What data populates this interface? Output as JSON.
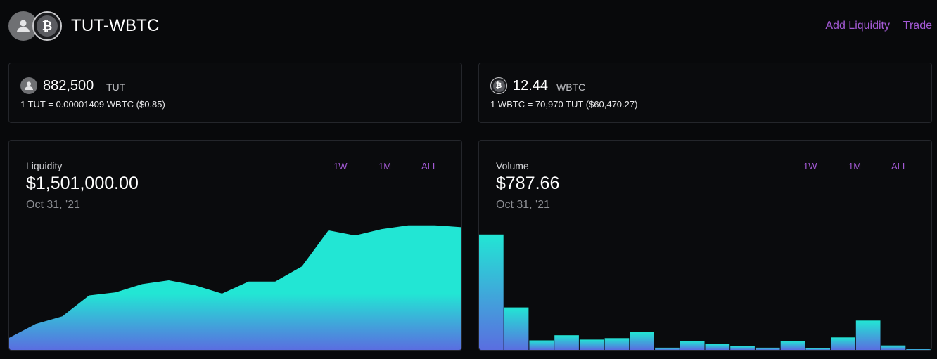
{
  "header": {
    "pair": "TUT-WBTC",
    "add_liquidity": "Add Liquidity",
    "trade": "Trade",
    "token0_icon": "user-icon",
    "token1_icon": "bitcoin-icon",
    "token1_glyph": "₿"
  },
  "balances": [
    {
      "amount": "882,500",
      "symbol": "TUT",
      "rate": "1 TUT = 0.00001409 WBTC ($0.85)",
      "icon": "user-icon"
    },
    {
      "amount": "12.44",
      "symbol": "WBTC",
      "rate": "1 WBTC = 70,970 TUT ($60,470.27)",
      "icon": "bitcoin-icon"
    }
  ],
  "liquidity": {
    "label": "Liquidity",
    "value": "$1,501,000.00",
    "date": "Oct 31, '21",
    "ranges": [
      "1W",
      "1M",
      "ALL"
    ]
  },
  "volume": {
    "label": "Volume",
    "value": "$787.66",
    "date": "Oct 31, '21",
    "ranges": [
      "1W",
      "1M",
      "ALL"
    ]
  },
  "colors": {
    "accent": "#a45ad6",
    "gradient_top": "#22e6d4",
    "gradient_bottom": "#5a6ee0"
  },
  "chart_data": [
    {
      "type": "area",
      "values": [
        95,
        205,
        265,
        430,
        455,
        520,
        550,
        510,
        445,
        540,
        540,
        660,
        945,
        905,
        955,
        985,
        985,
        970
      ],
      "ylim": [
        0,
        1100
      ]
    },
    {
      "type": "bar",
      "values": [
        787.66,
        290,
        65,
        100,
        70,
        80,
        120,
        15,
        60,
        40,
        25,
        15,
        60,
        10,
        85,
        200,
        30,
        0
      ],
      "ylim": [
        0,
        950
      ]
    }
  ]
}
